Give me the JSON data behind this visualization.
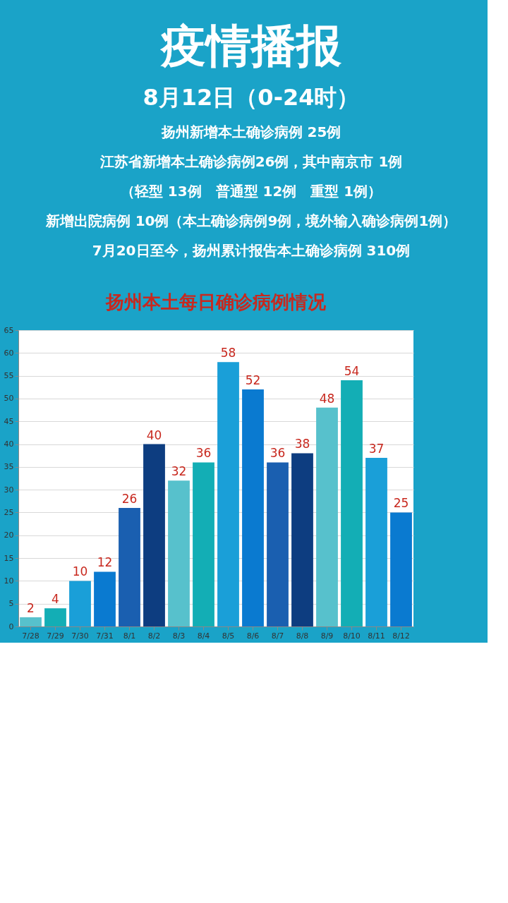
{
  "chart_data": {
    "type": "bar",
    "title": "扬州本土每日确诊病例情况",
    "annotations": [
      "疫情播报",
      "8月12日（0-24时）",
      "扬州新增本土确诊病例 25例",
      "江苏省新增本土确诊病例26例，其中南京市 1例",
      "（轻型 13例　普通型 12例　重型 1例）",
      "新增出院病例 10例（本土确诊病例9例，境外输入确诊病例1例）",
      "7月20日至今，扬州累计报告本土确诊病例 310例"
    ],
    "categories": [
      "7/28",
      "7/29",
      "7/30",
      "7/31",
      "8/1",
      "8/2",
      "8/3",
      "8/4",
      "8/5",
      "8/6",
      "8/7",
      "8/8",
      "8/9",
      "8/10",
      "8/11",
      "8/12"
    ],
    "values": [
      2,
      4,
      10,
      12,
      26,
      40,
      32,
      36,
      58,
      52,
      36,
      38,
      48,
      54,
      37,
      25
    ],
    "colors": [
      "#57c1cc",
      "#13aeb5",
      "#1a9fd8",
      "#0a7ad0",
      "#1a5fb0",
      "#0d3d80",
      "#57c1cc",
      "#13aeb5",
      "#1a9fd8",
      "#0a7ad0",
      "#1a5fb0",
      "#0d3d80",
      "#57c1cc",
      "#13aeb5",
      "#1a9fd8",
      "#0a7ad0"
    ],
    "ylim": [
      0,
      65
    ],
    "yticks": [
      0,
      5,
      10,
      15,
      20,
      25,
      30,
      35,
      40,
      45,
      50,
      55,
      60,
      65
    ],
    "grid": "y",
    "data_labels": true
  }
}
